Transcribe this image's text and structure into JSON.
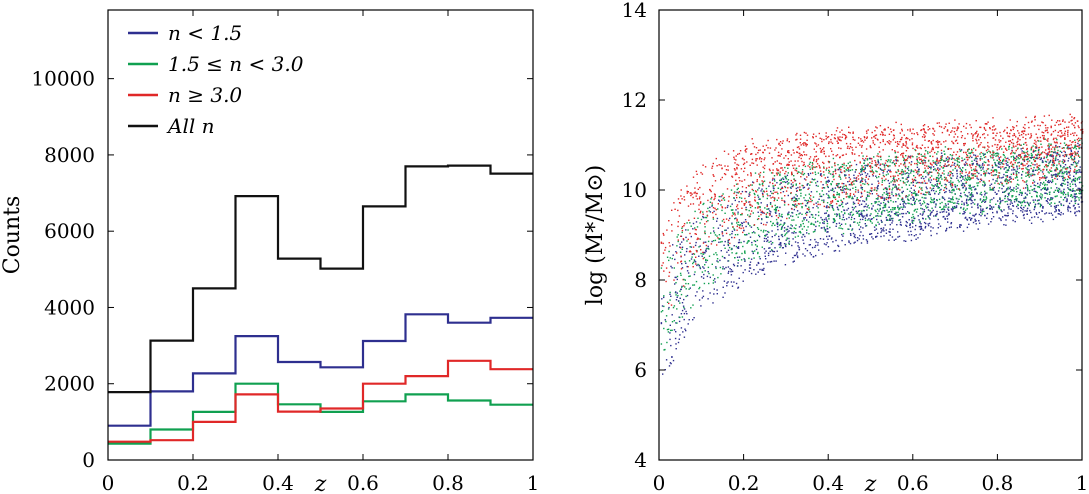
{
  "chart_data": [
    {
      "type": "line",
      "subtype": "step-histogram",
      "xlabel": "z",
      "ylabel": "Counts",
      "xlim": [
        0,
        1
      ],
      "ylim": [
        0,
        11800
      ],
      "xticks": [
        0,
        0.2,
        0.4,
        0.6,
        0.8,
        1
      ],
      "xtick_labels": [
        "0",
        "0.2",
        "0.4",
        "0.6",
        "0.8",
        "1"
      ],
      "yticks": [
        0,
        2000,
        4000,
        6000,
        8000,
        10000
      ],
      "ytick_labels": [
        "0",
        "2000",
        "4000",
        "6000",
        "8000",
        "10000"
      ],
      "bin_edges": [
        0,
        0.1,
        0.2,
        0.3,
        0.4,
        0.5,
        0.6,
        0.7,
        0.8,
        0.9,
        1.0
      ],
      "legend_position": "top-left",
      "series": [
        {
          "name": "n < 1.5",
          "color": "#2e2f8f",
          "values": [
            900,
            1800,
            2270,
            3250,
            2570,
            2430,
            3120,
            3820,
            3600,
            3730
          ]
        },
        {
          "name": "1.5 ≤ n < 3.0",
          "color": "#10a050",
          "values": [
            430,
            800,
            1260,
            2000,
            1460,
            1260,
            1540,
            1720,
            1560,
            1450
          ]
        },
        {
          "name": "n ≥ 3.0",
          "color": "#e02828",
          "values": [
            480,
            520,
            1000,
            1720,
            1270,
            1350,
            2000,
            2200,
            2600,
            2380
          ]
        },
        {
          "name": "All n",
          "color": "#111111",
          "values": [
            1780,
            3130,
            4500,
            6920,
            5280,
            5020,
            6650,
            7700,
            7720,
            7510
          ]
        }
      ]
    },
    {
      "type": "scatter",
      "xlabel": "z",
      "ylabel": "log (M*/M⊙)",
      "xlim": [
        0,
        1
      ],
      "ylim": [
        4,
        14
      ],
      "xticks": [
        0,
        0.2,
        0.4,
        0.6,
        0.8,
        1
      ],
      "xtick_labels": [
        "0",
        "0.2",
        "0.4",
        "0.6",
        "0.8",
        "1"
      ],
      "yticks": [
        4,
        6,
        8,
        10,
        12,
        14
      ],
      "ytick_labels": [
        "4",
        "6",
        "8",
        "10",
        "12",
        "14"
      ],
      "series_colors": [
        "#2e2f8f",
        "#10a050",
        "#e02828"
      ],
      "trend": {
        "z": [
          0.01,
          0.05,
          0.1,
          0.2,
          0.3,
          0.4,
          0.5,
          0.6,
          0.7,
          0.8,
          0.9,
          1.0
        ],
        "lower_envelope": [
          5.8,
          6.6,
          7.3,
          8.0,
          8.4,
          8.7,
          8.9,
          9.0,
          9.2,
          9.3,
          9.4,
          9.5
        ],
        "upper_envelope": [
          9.5,
          10.0,
          10.5,
          11.0,
          11.2,
          11.3,
          11.4,
          11.4,
          11.5,
          11.5,
          11.6,
          11.6
        ]
      }
    }
  ]
}
